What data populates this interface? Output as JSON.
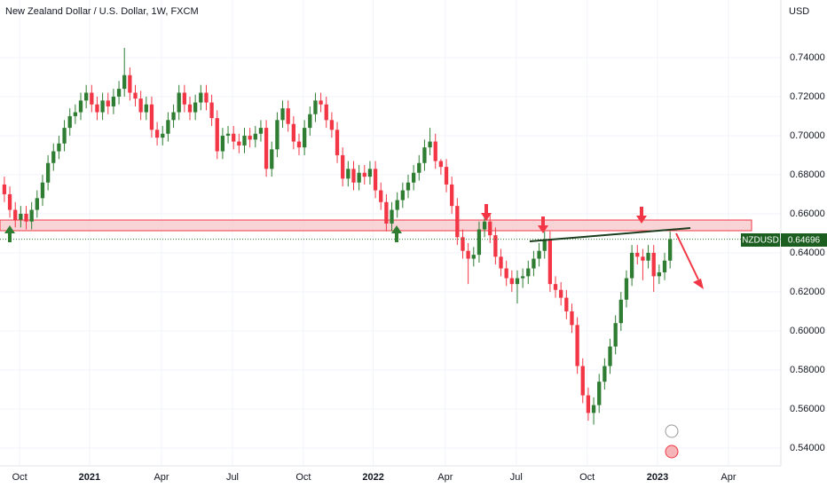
{
  "chart_data": {
    "type": "candlestick",
    "title": "New Zealand Dollar / U.S. Dollar, 1W, FXCM",
    "y_axis_label": "USD",
    "x": [
      0,
      1,
      2,
      3,
      4,
      5,
      6,
      7,
      8,
      9,
      10,
      11,
      12,
      13,
      14,
      15,
      16,
      17,
      18,
      19,
      20,
      21,
      22,
      23,
      24,
      25,
      26,
      27,
      28,
      29,
      30,
      31,
      32,
      33,
      34,
      35,
      36,
      37,
      38,
      39,
      40,
      41,
      42,
      43,
      44,
      45,
      46,
      47,
      48,
      49,
      50,
      51,
      52,
      53,
      54,
      55,
      56,
      57,
      58,
      59,
      60,
      61,
      62,
      63,
      64,
      65,
      66,
      67,
      68,
      69,
      70,
      71,
      72,
      73,
      74,
      75,
      76,
      77,
      78,
      79,
      80,
      81,
      82,
      83,
      84,
      85,
      86,
      87,
      88,
      89,
      90,
      91,
      92,
      93,
      94,
      95,
      96,
      97,
      98,
      99,
      100,
      101,
      102,
      103,
      104,
      105,
      106,
      107,
      108,
      109,
      110,
      111,
      112,
      113,
      114,
      115,
      116,
      117,
      118,
      119,
      120,
      121,
      122
    ],
    "series": [
      {
        "name": "NZDUSD",
        "up_color": "#2e7d32",
        "down_color": "#f23645",
        "open": [
          0.675,
          0.67,
          0.662,
          0.657,
          0.66,
          0.656,
          0.662,
          0.668,
          0.676,
          0.686,
          0.692,
          0.696,
          0.704,
          0.71,
          0.712,
          0.718,
          0.722,
          0.716,
          0.712,
          0.718,
          0.715,
          0.72,
          0.724,
          0.731,
          0.722,
          0.719,
          0.712,
          0.716,
          0.703,
          0.699,
          0.701,
          0.708,
          0.712,
          0.722,
          0.716,
          0.712,
          0.717,
          0.722,
          0.717,
          0.709,
          0.692,
          0.7,
          0.701,
          0.697,
          0.695,
          0.7,
          0.698,
          0.701,
          0.704,
          0.683,
          0.693,
          0.708,
          0.714,
          0.706,
          0.697,
          0.694,
          0.704,
          0.711,
          0.718,
          0.716,
          0.708,
          0.703,
          0.69,
          0.678,
          0.683,
          0.676,
          0.681,
          0.679,
          0.683,
          0.672,
          0.666,
          0.655,
          0.662,
          0.667,
          0.672,
          0.676,
          0.681,
          0.686,
          0.694,
          0.697,
          0.687,
          0.684,
          0.675,
          0.664,
          0.648,
          0.641,
          0.637,
          0.639,
          0.652,
          0.656,
          0.649,
          0.638,
          0.632,
          0.627,
          0.624,
          0.627,
          0.628,
          0.632,
          0.637,
          0.641,
          0.647,
          0.624,
          0.621,
          0.617,
          0.61,
          0.603,
          0.582,
          0.567,
          0.558,
          0.562,
          0.574,
          0.582,
          0.592,
          0.604,
          0.616,
          0.627,
          0.64,
          0.638,
          0.636,
          0.64,
          0.628,
          0.63,
          0.636
        ],
        "high": [
          0.679,
          0.674,
          0.666,
          0.664,
          0.664,
          0.666,
          0.672,
          0.68,
          0.69,
          0.696,
          0.7,
          0.708,
          0.714,
          0.716,
          0.722,
          0.726,
          0.726,
          0.72,
          0.722,
          0.722,
          0.724,
          0.728,
          0.745,
          0.735,
          0.726,
          0.723,
          0.72,
          0.72,
          0.707,
          0.705,
          0.712,
          0.716,
          0.726,
          0.726,
          0.72,
          0.721,
          0.726,
          0.726,
          0.721,
          0.713,
          0.704,
          0.705,
          0.705,
          0.701,
          0.704,
          0.704,
          0.705,
          0.708,
          0.708,
          0.697,
          0.712,
          0.718,
          0.718,
          0.71,
          0.701,
          0.708,
          0.715,
          0.722,
          0.722,
          0.72,
          0.712,
          0.707,
          0.694,
          0.687,
          0.687,
          0.685,
          0.685,
          0.687,
          0.687,
          0.676,
          0.67,
          0.666,
          0.671,
          0.676,
          0.68,
          0.685,
          0.69,
          0.698,
          0.704,
          0.701,
          0.688,
          0.688,
          0.679,
          0.668,
          0.652,
          0.645,
          0.643,
          0.656,
          0.66,
          0.66,
          0.653,
          0.642,
          0.636,
          0.631,
          0.631,
          0.632,
          0.636,
          0.641,
          0.645,
          0.651,
          0.651,
          0.628,
          0.625,
          0.621,
          0.614,
          0.607,
          0.586,
          0.571,
          0.566,
          0.578,
          0.586,
          0.596,
          0.608,
          0.62,
          0.631,
          0.644,
          0.644,
          0.642,
          0.644,
          0.644,
          0.634,
          0.64,
          0.651
        ],
        "low": [
          0.666,
          0.658,
          0.653,
          0.653,
          0.652,
          0.652,
          0.658,
          0.664,
          0.672,
          0.682,
          0.688,
          0.692,
          0.7,
          0.706,
          0.708,
          0.714,
          0.712,
          0.708,
          0.708,
          0.711,
          0.711,
          0.716,
          0.72,
          0.718,
          0.715,
          0.708,
          0.708,
          0.699,
          0.695,
          0.695,
          0.697,
          0.704,
          0.708,
          0.712,
          0.708,
          0.708,
          0.713,
          0.713,
          0.705,
          0.688,
          0.688,
          0.696,
          0.693,
          0.691,
          0.691,
          0.694,
          0.694,
          0.697,
          0.679,
          0.679,
          0.689,
          0.704,
          0.702,
          0.693,
          0.69,
          0.69,
          0.7,
          0.707,
          0.712,
          0.704,
          0.699,
          0.686,
          0.674,
          0.674,
          0.672,
          0.672,
          0.675,
          0.675,
          0.668,
          0.662,
          0.651,
          0.651,
          0.658,
          0.663,
          0.668,
          0.672,
          0.677,
          0.682,
          0.69,
          0.683,
          0.68,
          0.671,
          0.66,
          0.644,
          0.637,
          0.624,
          0.633,
          0.635,
          0.648,
          0.645,
          0.634,
          0.628,
          0.623,
          0.62,
          0.614,
          0.622,
          0.624,
          0.628,
          0.633,
          0.637,
          0.62,
          0.617,
          0.613,
          0.606,
          0.599,
          0.578,
          0.563,
          0.554,
          0.552,
          0.558,
          0.57,
          0.578,
          0.588,
          0.6,
          0.612,
          0.623,
          0.634,
          0.626,
          0.632,
          0.62,
          0.624,
          0.626,
          0.632
        ],
        "close": [
          0.67,
          0.662,
          0.657,
          0.66,
          0.656,
          0.662,
          0.668,
          0.676,
          0.686,
          0.692,
          0.696,
          0.704,
          0.71,
          0.712,
          0.718,
          0.722,
          0.716,
          0.712,
          0.718,
          0.715,
          0.72,
          0.724,
          0.731,
          0.722,
          0.719,
          0.712,
          0.716,
          0.703,
          0.699,
          0.701,
          0.708,
          0.712,
          0.722,
          0.716,
          0.712,
          0.717,
          0.722,
          0.717,
          0.709,
          0.692,
          0.7,
          0.701,
          0.697,
          0.695,
          0.7,
          0.698,
          0.701,
          0.704,
          0.683,
          0.693,
          0.708,
          0.714,
          0.706,
          0.697,
          0.694,
          0.704,
          0.711,
          0.718,
          0.716,
          0.708,
          0.703,
          0.69,
          0.678,
          0.683,
          0.676,
          0.681,
          0.679,
          0.683,
          0.672,
          0.666,
          0.655,
          0.662,
          0.667,
          0.672,
          0.676,
          0.681,
          0.686,
          0.694,
          0.697,
          0.687,
          0.684,
          0.675,
          0.664,
          0.648,
          0.641,
          0.637,
          0.639,
          0.652,
          0.656,
          0.649,
          0.638,
          0.632,
          0.627,
          0.624,
          0.627,
          0.628,
          0.632,
          0.637,
          0.641,
          0.647,
          0.624,
          0.621,
          0.617,
          0.61,
          0.603,
          0.582,
          0.567,
          0.558,
          0.562,
          0.574,
          0.582,
          0.592,
          0.604,
          0.616,
          0.627,
          0.64,
          0.638,
          0.636,
          0.64,
          0.628,
          0.63,
          0.636,
          0.64696
        ]
      }
    ],
    "xlim": [
      -0.8,
      142.3
    ],
    "ylim": [
      0.5309,
      0.7695
    ],
    "xticks": [
      {
        "value": 2.8,
        "label": "Oct"
      },
      {
        "value": 15.6,
        "label": "2021"
      },
      {
        "value": 28.8,
        "label": "Apr"
      },
      {
        "value": 41.8,
        "label": "Jul"
      },
      {
        "value": 54.8,
        "label": "Oct"
      },
      {
        "value": 67.6,
        "label": "2022"
      },
      {
        "value": 80.8,
        "label": "Apr"
      },
      {
        "value": 93.8,
        "label": "Jul"
      },
      {
        "value": 106.8,
        "label": "Oct"
      },
      {
        "value": 119.7,
        "label": "2023"
      },
      {
        "value": 132.7,
        "label": "Apr"
      }
    ],
    "yticks": [
      {
        "value": 0.54,
        "label": "0.54000"
      },
      {
        "value": 0.56,
        "label": "0.56000"
      },
      {
        "value": 0.58,
        "label": "0.58000"
      },
      {
        "value": 0.6,
        "label": "0.60000"
      },
      {
        "value": 0.62,
        "label": "0.62000"
      },
      {
        "value": 0.64,
        "label": "0.64000"
      },
      {
        "value": 0.66,
        "label": "0.66000"
      },
      {
        "value": 0.68,
        "label": "0.68000"
      },
      {
        "value": 0.7,
        "label": "0.70000"
      },
      {
        "value": 0.72,
        "label": "0.72000"
      },
      {
        "value": 0.74,
        "label": "0.74000"
      }
    ],
    "grid": true
  }
}
